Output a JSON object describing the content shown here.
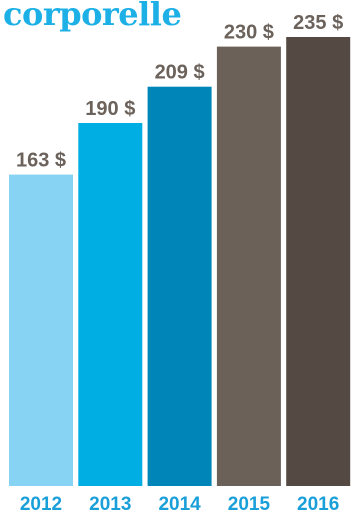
{
  "title": "corporelle",
  "colors": {
    "title": "#1cb0e6",
    "value_label": "#6b625b",
    "category_label": "#1a9fd9"
  },
  "chart_data": {
    "type": "bar",
    "title": "corporelle",
    "categories": [
      "2012",
      "2013",
      "2014",
      "2015",
      "2016"
    ],
    "values": [
      163,
      190,
      209,
      230,
      235
    ],
    "value_labels": [
      "163 $",
      "190 $",
      "209 $",
      "230 $",
      "235 $"
    ],
    "bar_colors": [
      "#87d3f4",
      "#00aee3",
      "#0085b8",
      "#6b6159",
      "#544a43"
    ],
    "xlabel": "",
    "ylabel": "",
    "ylim": [
      0,
      235
    ],
    "grid": false
  }
}
